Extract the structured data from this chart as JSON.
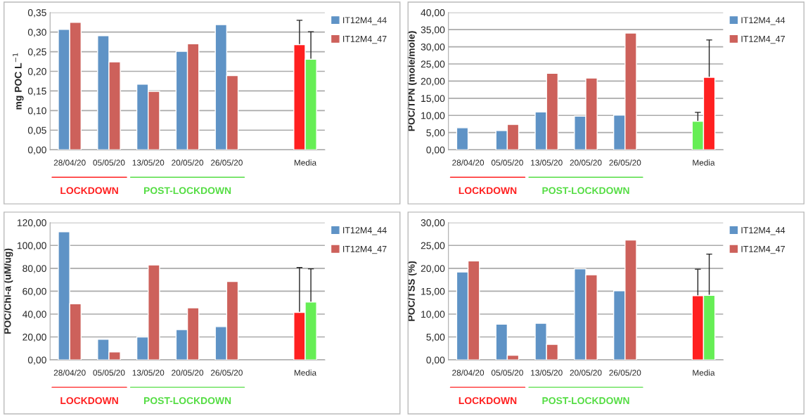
{
  "chart_data": [
    {
      "type": "bar",
      "ylabel": "mg POC L$^{−1}$",
      "categories": [
        "28/04/20",
        "05/05/20",
        "13/05/20",
        "20/05/20",
        "26/05/20",
        null,
        "Media"
      ],
      "series": [
        {
          "name": "IT12M4_44",
          "color": "#5f93c6",
          "colors": [
            "#5f93c6",
            "#5f93c6",
            "#5f93c6",
            "#5f93c6",
            "#5f93c6",
            "#5f93c6",
            "#ff2020"
          ],
          "values": [
            0.307,
            0.291,
            0.167,
            0.251,
            0.319,
            null,
            0.268
          ],
          "errors": [
            null,
            null,
            null,
            null,
            null,
            null,
            0.062
          ]
        },
        {
          "name": "IT12M4_47",
          "color": "#cd615b",
          "colors": [
            "#cd615b",
            "#cd615b",
            "#cd615b",
            "#cd615b",
            "#cd615b",
            "#cd615b",
            "#66ee55"
          ],
          "values": [
            0.325,
            0.224,
            0.149,
            0.27,
            0.189,
            null,
            0.231
          ],
          "errors": [
            null,
            null,
            null,
            null,
            null,
            null,
            0.07
          ]
        }
      ],
      "ylim": [
        0,
        0.35
      ],
      "yticks": [
        {
          "value": 0,
          "label": "0,00"
        },
        {
          "value": 0.05,
          "label": "0,05"
        },
        {
          "value": 0.1,
          "label": "0,10"
        },
        {
          "value": 0.15,
          "label": "0,15"
        },
        {
          "value": 0.2,
          "label": "0,20"
        },
        {
          "value": 0.25,
          "label": "0,25"
        },
        {
          "value": 0.3,
          "label": "0,30"
        },
        {
          "value": 0.35,
          "label": "0,35"
        }
      ],
      "grid": "y",
      "legend": "top right",
      "annotations": [
        "LOCKDOWN",
        "POST-LOCKDOWN"
      ]
    },
    {
      "type": "bar",
      "ylabel": "POC/TPN (mole/mole)",
      "categories": [
        "28/04/20",
        "05/05/20",
        "13/05/20",
        "20/05/20",
        "26/05/20",
        null,
        "Media"
      ],
      "series": [
        {
          "name": "IT12M4_44",
          "color": "#5f93c6",
          "colors": [
            "#5f93c6",
            "#5f93c6",
            "#5f93c6",
            "#5f93c6",
            "#5f93c6",
            "#5f93c6",
            "#66ee55"
          ],
          "values": [
            6.4,
            5.6,
            11.0,
            9.8,
            10.1,
            null,
            8.3
          ],
          "errors": [
            null,
            null,
            null,
            null,
            null,
            null,
            2.6
          ]
        },
        {
          "name": "IT12M4_47",
          "color": "#cd615b",
          "colors": [
            "#cd615b",
            "#cd615b",
            "#cd615b",
            "#cd615b",
            "#cd615b",
            "#cd615b",
            "#ff2020"
          ],
          "values": [
            null,
            7.4,
            22.3,
            20.9,
            34.0,
            null,
            21.1
          ],
          "errors": [
            null,
            null,
            null,
            null,
            null,
            null,
            10.9
          ]
        }
      ],
      "ylim": [
        0,
        40
      ],
      "yticks": [
        {
          "value": 0,
          "label": "0,00"
        },
        {
          "value": 5,
          "label": "5,00"
        },
        {
          "value": 10,
          "label": "10,00"
        },
        {
          "value": 15,
          "label": "15,00"
        },
        {
          "value": 20,
          "label": "20,00"
        },
        {
          "value": 25,
          "label": "25,00"
        },
        {
          "value": 30,
          "label": "30,00"
        },
        {
          "value": 35,
          "label": "35,00"
        },
        {
          "value": 40,
          "label": "40,00"
        }
      ],
      "grid": "y",
      "legend": "top right",
      "annotations": [
        "LOCKDOWN",
        "POST-LOCKDOWN"
      ]
    },
    {
      "type": "bar",
      "ylabel": "POC/Chl-a (uM/ug)",
      "categories": [
        "28/04/20",
        "05/05/20",
        "13/05/20",
        "20/05/20",
        "26/05/20",
        null,
        "Media"
      ],
      "series": [
        {
          "name": "IT12M4_44",
          "color": "#5f93c6",
          "colors": [
            "#5f93c6",
            "#5f93c6",
            "#5f93c6",
            "#5f93c6",
            "#5f93c6",
            "#5f93c6",
            "#ff2020"
          ],
          "values": [
            112,
            18,
            20,
            26.5,
            29,
            null,
            41.5
          ],
          "errors": [
            null,
            null,
            null,
            null,
            null,
            null,
            39.2
          ]
        },
        {
          "name": "IT12M4_47",
          "color": "#cd615b",
          "colors": [
            "#cd615b",
            "#cd615b",
            "#cd615b",
            "#cd615b",
            "#cd615b",
            "#cd615b",
            "#66ee55"
          ],
          "values": [
            49,
            7,
            83,
            45.5,
            68.5,
            null,
            50.5
          ],
          "errors": [
            null,
            null,
            null,
            null,
            null,
            null,
            29
          ]
        }
      ],
      "ylim": [
        0,
        120
      ],
      "yticks": [
        {
          "value": 0,
          "label": "0,00"
        },
        {
          "value": 20,
          "label": "20,00"
        },
        {
          "value": 40,
          "label": "40,00"
        },
        {
          "value": 60,
          "label": "60,00"
        },
        {
          "value": 80,
          "label": "80,00"
        },
        {
          "value": 100,
          "label": "100,00"
        },
        {
          "value": 120,
          "label": "120,00"
        }
      ],
      "grid": "y",
      "legend": "top right",
      "annotations": [
        "LOCKDOWN",
        "POST-LOCKDOWN"
      ]
    },
    {
      "type": "bar",
      "ylabel": "POC/TSS (%)",
      "categories": [
        "28/04/20",
        "05/05/20",
        "13/05/20",
        "20/05/20",
        "26/05/20",
        null,
        "Media"
      ],
      "series": [
        {
          "name": "IT12M4_44",
          "color": "#5f93c6",
          "colors": [
            "#5f93c6",
            "#5f93c6",
            "#5f93c6",
            "#5f93c6",
            "#5f93c6",
            "#5f93c6",
            "#ff2020"
          ],
          "values": [
            19.2,
            7.8,
            8.0,
            19.9,
            15.1,
            null,
            14.0
          ],
          "errors": [
            null,
            null,
            null,
            null,
            null,
            null,
            5.8
          ]
        },
        {
          "name": "IT12M4_47",
          "color": "#cd615b",
          "colors": [
            "#cd615b",
            "#cd615b",
            "#cd615b",
            "#cd615b",
            "#cd615b",
            "#cd615b",
            "#66ee55"
          ],
          "values": [
            21.6,
            1.0,
            3.4,
            18.6,
            26.2,
            null,
            14.1
          ],
          "errors": [
            null,
            null,
            null,
            null,
            null,
            null,
            9.0
          ]
        }
      ],
      "ylim": [
        0,
        30
      ],
      "yticks": [
        {
          "value": 0,
          "label": "0,00"
        },
        {
          "value": 5,
          "label": "5,00"
        },
        {
          "value": 10,
          "label": "10,00"
        },
        {
          "value": 15,
          "label": "15,00"
        },
        {
          "value": 20,
          "label": "20,00"
        },
        {
          "value": 25,
          "label": "25,00"
        },
        {
          "value": 30,
          "label": "30,00"
        }
      ],
      "grid": "y",
      "legend": "top right",
      "annotations": [
        "LOCKDOWN",
        "POST-LOCKDOWN"
      ]
    }
  ]
}
